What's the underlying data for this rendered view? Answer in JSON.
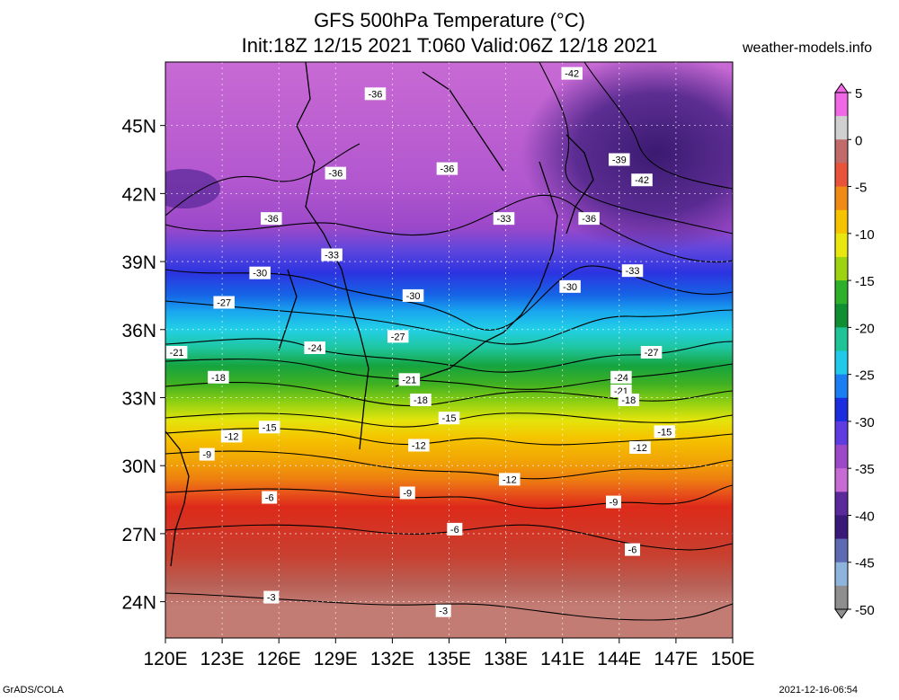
{
  "title": {
    "line1": "GFS 500hPa Temperature (°C)",
    "line2": "Init:18Z 12/15 2021 T:060 Valid:06Z 12/18 2021"
  },
  "watermark": "weather-models.info",
  "footer": {
    "left": "GrADS/COLA",
    "right": "2021-12-16-06:54"
  },
  "map": {
    "lon_range": [
      120,
      150
    ],
    "lat_range": [
      22.4,
      47.8
    ],
    "lon_ticks": [
      "120E",
      "123E",
      "126E",
      "129E",
      "132E",
      "135E",
      "138E",
      "141E",
      "144E",
      "147E",
      "150E"
    ],
    "lat_ticks": [
      "24N",
      "27N",
      "30N",
      "33N",
      "36N",
      "39N",
      "42N",
      "45N"
    ],
    "temperature_bands": [
      {
        "lat": 47.8,
        "color": "#c86ad4"
      },
      {
        "lat": 42.5,
        "color": "#b257cf"
      },
      {
        "lat": 40.5,
        "color": "#9b48c9"
      },
      {
        "lat": 39.5,
        "color": "#5e46dd"
      },
      {
        "lat": 38.5,
        "color": "#2c33e0"
      },
      {
        "lat": 37.5,
        "color": "#1566e6"
      },
      {
        "lat": 36.8,
        "color": "#19a6ef"
      },
      {
        "lat": 36.0,
        "color": "#22d0e6"
      },
      {
        "lat": 35.2,
        "color": "#1fc6a0"
      },
      {
        "lat": 34.4,
        "color": "#16a43f"
      },
      {
        "lat": 33.6,
        "color": "#3fb022"
      },
      {
        "lat": 32.8,
        "color": "#8fd012"
      },
      {
        "lat": 32.0,
        "color": "#e4e40c"
      },
      {
        "lat": 31.2,
        "color": "#f5c300"
      },
      {
        "lat": 30.2,
        "color": "#f1a405"
      },
      {
        "lat": 29.4,
        "color": "#ee7e10"
      },
      {
        "lat": 28.8,
        "color": "#e8541a"
      },
      {
        "lat": 28.2,
        "color": "#dd2a1a"
      },
      {
        "lat": 26.0,
        "color": "#c84030"
      },
      {
        "lat": 24.8,
        "color": "#b85f55"
      },
      {
        "lat": 23.8,
        "color": "#c27c74"
      }
    ],
    "cold_pocket_color": "#4b2487",
    "contour_labels": [
      {
        "text": "-42",
        "lon": 141.5,
        "lat": 47.3
      },
      {
        "text": "-36",
        "lon": 131.1,
        "lat": 46.4
      },
      {
        "text": "-39",
        "lon": 144.0,
        "lat": 43.5
      },
      {
        "text": "-36",
        "lon": 134.9,
        "lat": 43.1
      },
      {
        "text": "-36",
        "lon": 129.0,
        "lat": 42.9
      },
      {
        "text": "-42",
        "lon": 145.2,
        "lat": 42.6
      },
      {
        "text": "-36",
        "lon": 125.6,
        "lat": 40.9
      },
      {
        "text": "-33",
        "lon": 137.9,
        "lat": 40.9
      },
      {
        "text": "-36",
        "lon": 142.4,
        "lat": 40.9
      },
      {
        "text": "-33",
        "lon": 128.8,
        "lat": 39.3
      },
      {
        "text": "-33",
        "lon": 144.7,
        "lat": 38.6
      },
      {
        "text": "-30",
        "lon": 125.0,
        "lat": 38.5
      },
      {
        "text": "-30",
        "lon": 141.4,
        "lat": 37.9
      },
      {
        "text": "-30",
        "lon": 133.1,
        "lat": 37.5
      },
      {
        "text": "-27",
        "lon": 123.1,
        "lat": 37.2
      },
      {
        "text": "-27",
        "lon": 132.3,
        "lat": 35.7
      },
      {
        "text": "-24",
        "lon": 127.9,
        "lat": 35.2
      },
      {
        "text": "-21",
        "lon": 120.6,
        "lat": 35.0
      },
      {
        "text": "-27",
        "lon": 145.7,
        "lat": 35.0
      },
      {
        "text": "-18",
        "lon": 122.8,
        "lat": 33.9
      },
      {
        "text": "-24",
        "lon": 144.1,
        "lat": 33.9
      },
      {
        "text": "-21",
        "lon": 132.9,
        "lat": 33.8
      },
      {
        "text": "-21",
        "lon": 144.1,
        "lat": 33.3
      },
      {
        "text": "-18",
        "lon": 133.5,
        "lat": 32.9
      },
      {
        "text": "-18",
        "lon": 144.5,
        "lat": 32.9
      },
      {
        "text": "-15",
        "lon": 135.0,
        "lat": 32.1
      },
      {
        "text": "-15",
        "lon": 125.5,
        "lat": 31.7
      },
      {
        "text": "-15",
        "lon": 146.4,
        "lat": 31.5
      },
      {
        "text": "-12",
        "lon": 123.5,
        "lat": 31.3
      },
      {
        "text": "-12",
        "lon": 133.4,
        "lat": 30.9
      },
      {
        "text": "-12",
        "lon": 145.1,
        "lat": 30.8
      },
      {
        "text": "-9",
        "lon": 122.2,
        "lat": 30.5
      },
      {
        "text": "-12",
        "lon": 138.2,
        "lat": 29.4
      },
      {
        "text": "-9",
        "lon": 132.8,
        "lat": 28.8
      },
      {
        "text": "-6",
        "lon": 125.5,
        "lat": 28.6
      },
      {
        "text": "-9",
        "lon": 143.7,
        "lat": 28.4
      },
      {
        "text": "-6",
        "lon": 135.3,
        "lat": 27.2
      },
      {
        "text": "-6",
        "lon": 144.7,
        "lat": 26.3
      },
      {
        "text": "-3",
        "lon": 125.6,
        "lat": 24.2
      },
      {
        "text": "-3",
        "lon": 134.7,
        "lat": 23.6
      }
    ]
  },
  "colorbar": {
    "min": -50,
    "max": 5,
    "labels": [
      "5",
      "0",
      "-5",
      "-10",
      "-15",
      "-20",
      "-25",
      "-30",
      "-35",
      "-40",
      "-45",
      "-50"
    ],
    "label_values": [
      5,
      0,
      -5,
      -10,
      -15,
      -20,
      -25,
      -30,
      -35,
      -40,
      -45,
      -50
    ],
    "colors": [
      "#f068e6",
      "#d0d0d0",
      "#c06a6a",
      "#e8543a",
      "#ef8a16",
      "#f5c300",
      "#e8e80e",
      "#9dd412",
      "#2fb02a",
      "#0f8f32",
      "#1ec496",
      "#22c8e8",
      "#1a7ef0",
      "#1a2ee0",
      "#5e3ce0",
      "#9b48c9",
      "#c86ad4",
      "#5b2a9a",
      "#3a1a78",
      "#5c6ab4",
      "#8cb4dc",
      "#8e8e8e"
    ]
  }
}
